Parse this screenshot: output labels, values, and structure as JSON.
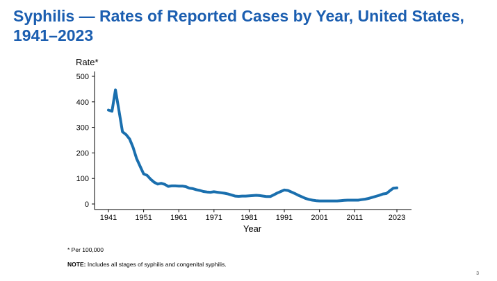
{
  "slide": {
    "title_line1": "Syphilis — Rates of Reported Cases by Year, United States,",
    "title_line2": "1941–2023",
    "footnote_rate": "* Per 100,000",
    "note_label": "NOTE:",
    "note_text": " Includes all stages of syphilis and congenital syphilis.",
    "page_number": "3"
  },
  "chart_data": {
    "type": "line",
    "title": "Syphilis — Rates of Reported Cases by Year, United States, 1941–2023",
    "xlabel": "Year",
    "ylabel": "Rate*",
    "xlim": [
      1941,
      2023
    ],
    "ylim": [
      0,
      500
    ],
    "xticks": [
      "1941",
      "1951",
      "1961",
      "1971",
      "1981",
      "1991",
      "2001",
      "2011",
      "2023"
    ],
    "yticks": [
      "0",
      "100",
      "200",
      "300",
      "400",
      "500"
    ],
    "grid": false,
    "line_color": "#1a6fae",
    "series": [
      {
        "name": "Rate",
        "x": [
          1941,
          1942,
          1943,
          1944,
          1945,
          1946,
          1947,
          1948,
          1949,
          1950,
          1951,
          1952,
          1953,
          1954,
          1955,
          1956,
          1957,
          1958,
          1959,
          1960,
          1961,
          1962,
          1963,
          1964,
          1965,
          1966,
          1967,
          1968,
          1969,
          1970,
          1971,
          1972,
          1973,
          1974,
          1975,
          1976,
          1977,
          1978,
          1979,
          1980,
          1981,
          1982,
          1983,
          1984,
          1985,
          1986,
          1987,
          1988,
          1989,
          1990,
          1991,
          1992,
          1993,
          1994,
          1995,
          1996,
          1997,
          1998,
          1999,
          2000,
          2001,
          2002,
          2003,
          2004,
          2005,
          2006,
          2007,
          2008,
          2009,
          2010,
          2011,
          2012,
          2013,
          2014,
          2015,
          2016,
          2017,
          2018,
          2019,
          2020,
          2021,
          2022,
          2023
        ],
        "values": [
          368,
          363,
          447,
          365,
          283,
          272,
          255,
          222,
          178,
          148,
          118,
          112,
          97,
          85,
          78,
          81,
          77,
          69,
          71,
          71,
          70,
          70,
          68,
          62,
          60,
          56,
          53,
          49,
          47,
          46,
          48,
          46,
          44,
          42,
          39,
          35,
          31,
          30,
          31,
          31,
          32,
          33,
          34,
          33,
          31,
          29,
          29,
          36,
          43,
          49,
          55,
          53,
          47,
          41,
          34,
          28,
          22,
          18,
          15,
          13,
          12,
          12,
          12,
          12,
          12,
          12,
          13,
          14,
          15,
          15,
          15,
          15,
          17,
          19,
          22,
          26,
          30,
          34,
          39,
          41,
          52,
          62,
          63
        ]
      }
    ]
  }
}
